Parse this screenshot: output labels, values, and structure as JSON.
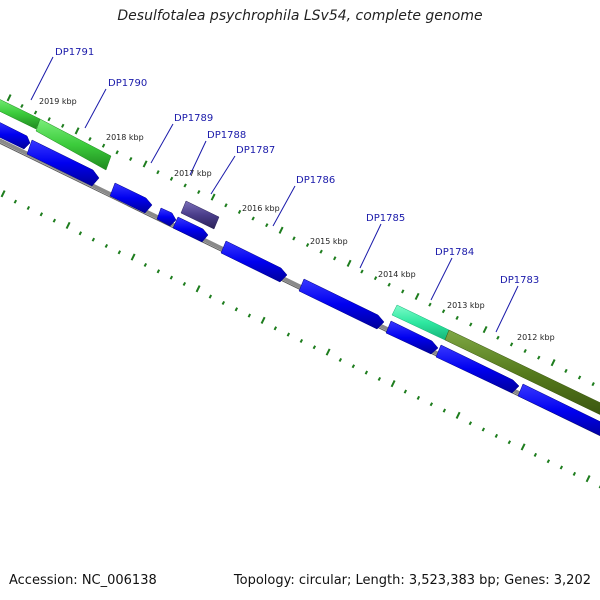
{
  "title": "Desulfotalea psychrophila LSv54, complete genome",
  "footer": {
    "accession": "Accession: NC_006138",
    "summary": "Topology: circular; Length: 3,523,383 bp; Genes: 3,202"
  },
  "colors": {
    "backbone": "#808080",
    "gene": "#0000f0",
    "feature_green": "#3ccc3c",
    "feature_olive": "#557a1c",
    "feature_cyan": "#2ee8a0",
    "feature_purple": "#4a3d8a",
    "tick": "#1e7d1e",
    "label": "#1a1aaa"
  },
  "gene_labels": [
    "DP1791",
    "DP1790",
    "DP1789",
    "DP1788",
    "DP1787",
    "DP1786",
    "DP1785",
    "DP1784",
    "DP1783"
  ],
  "kbp_labels": [
    "2019 kbp",
    "2018 kbp",
    "2017 kbp",
    "2016 kbp",
    "2015 kbp",
    "2014 kbp",
    "2013 kbp",
    "2012 kbp"
  ]
}
